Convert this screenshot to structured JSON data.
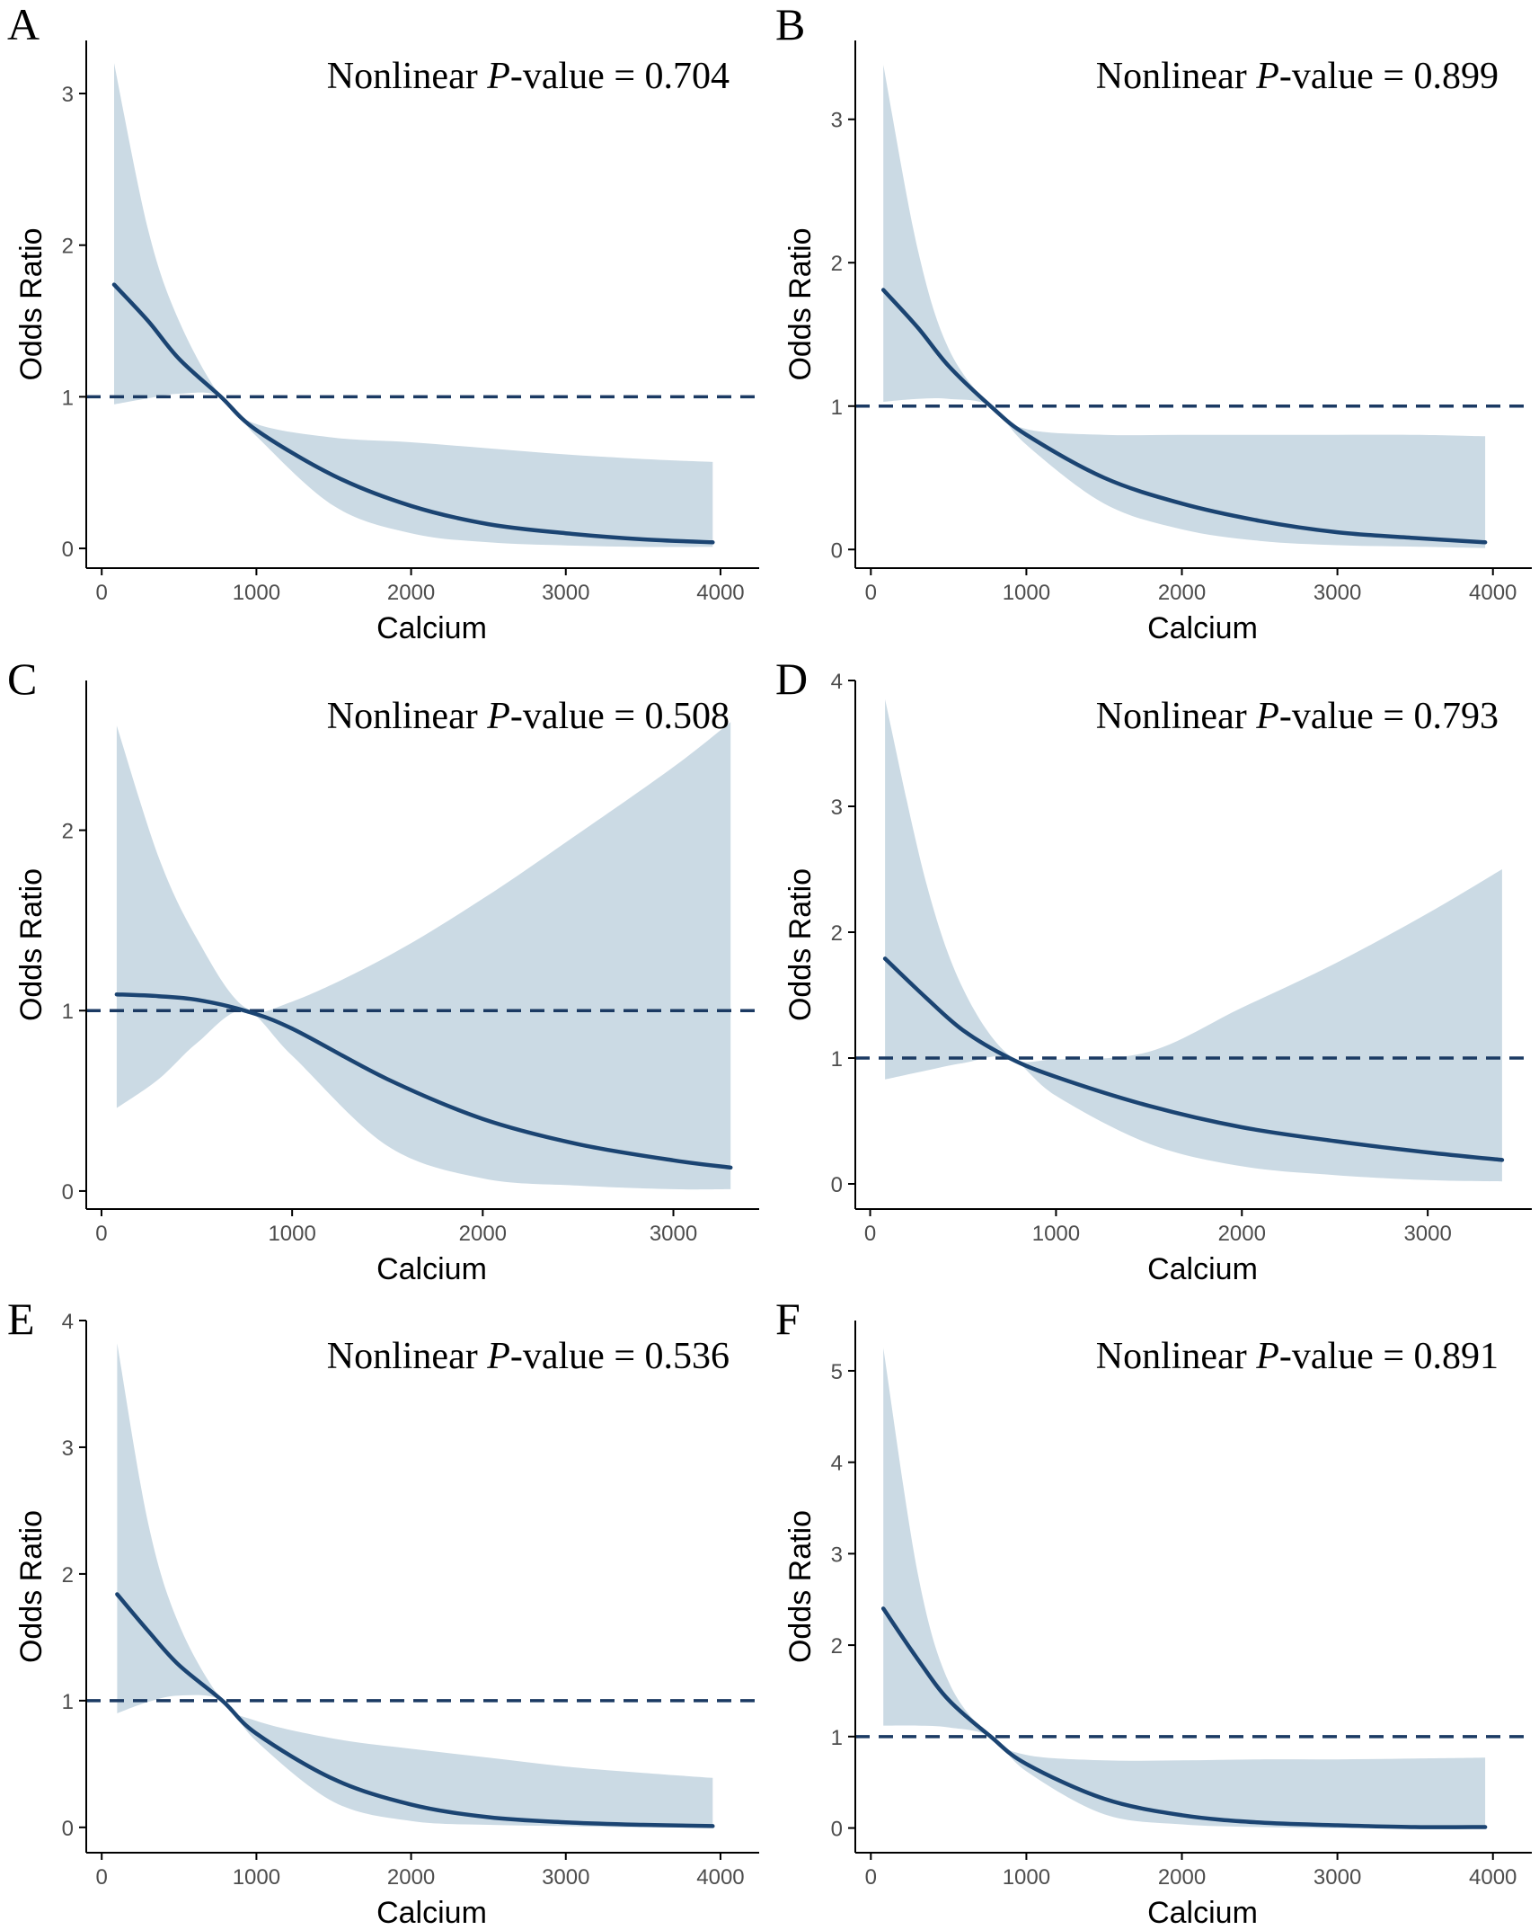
{
  "colors": {
    "line": "#1b4472",
    "band": "#cbdae4",
    "refline": "#1b3a63",
    "axis": "#000000"
  },
  "chart_data": [
    {
      "panel": "A",
      "type": "area",
      "annotation": {
        "prefix": "Nonlinear ",
        "italic": "P",
        "suffix": "-value = 0.704"
      },
      "xlabel": "Calcium",
      "ylabel": "Odds Ratio",
      "xlim": [
        -100,
        4250
      ],
      "ylim": [
        -0.13,
        3.35
      ],
      "xticks": [
        0,
        1000,
        2000,
        3000,
        4000
      ],
      "xtick_labels": [
        "0",
        "1000",
        "2000",
        "3000",
        "4000"
      ],
      "yticks": [
        0,
        1,
        2,
        3
      ],
      "ytick_labels": [
        "0",
        "1",
        "2",
        "3"
      ],
      "reference_line": 1,
      "series": [
        {
          "name": "Odds Ratio",
          "x": [
            80,
            300,
            500,
            770,
            1000,
            1500,
            2000,
            2500,
            3000,
            3500,
            3950
          ],
          "values": [
            1.74,
            1.5,
            1.25,
            1.0,
            0.78,
            0.48,
            0.28,
            0.16,
            0.1,
            0.06,
            0.04
          ]
        },
        {
          "name": "Upper CI",
          "x": [
            80,
            300,
            500,
            770,
            1000,
            1500,
            2000,
            2500,
            3000,
            3500,
            3950
          ],
          "values": [
            3.2,
            2.1,
            1.5,
            1.0,
            0.82,
            0.73,
            0.7,
            0.66,
            0.62,
            0.59,
            0.57
          ]
        },
        {
          "name": "Lower CI",
          "x": [
            80,
            300,
            500,
            770,
            1000,
            1500,
            2000,
            2500,
            3000,
            3500,
            3950
          ],
          "values": [
            0.95,
            0.99,
            1.02,
            1.0,
            0.74,
            0.28,
            0.1,
            0.04,
            0.02,
            0.01,
            0.01
          ]
        }
      ]
    },
    {
      "panel": "B",
      "type": "area",
      "annotation": {
        "prefix": "Nonlinear ",
        "italic": "P",
        "suffix": "-value = 0.899"
      },
      "xlabel": "Calcium",
      "ylabel": "Odds Ratio",
      "xlim": [
        -100,
        4250
      ],
      "ylim": [
        -0.13,
        3.55
      ],
      "xticks": [
        0,
        1000,
        2000,
        3000,
        4000
      ],
      "xtick_labels": [
        "0",
        "1000",
        "2000",
        "3000",
        "4000"
      ],
      "yticks": [
        0,
        1,
        2,
        3
      ],
      "ytick_labels": [
        "0",
        "1",
        "2",
        "3"
      ],
      "reference_line": 1,
      "series": [
        {
          "name": "Odds Ratio",
          "x": [
            80,
            300,
            500,
            770,
            1000,
            1500,
            2000,
            2500,
            3000,
            3500,
            3950
          ],
          "values": [
            1.81,
            1.55,
            1.28,
            1.0,
            0.8,
            0.5,
            0.32,
            0.2,
            0.12,
            0.08,
            0.05
          ]
        },
        {
          "name": "Upper CI",
          "x": [
            80,
            300,
            500,
            770,
            1000,
            1500,
            2000,
            2500,
            3000,
            3500,
            3950
          ],
          "values": [
            3.38,
            2.1,
            1.4,
            1.0,
            0.84,
            0.8,
            0.8,
            0.8,
            0.8,
            0.8,
            0.79
          ]
        },
        {
          "name": "Lower CI",
          "x": [
            80,
            300,
            500,
            770,
            1000,
            1500,
            2000,
            2500,
            3000,
            3500,
            3950
          ],
          "values": [
            1.03,
            1.05,
            1.05,
            1.0,
            0.73,
            0.32,
            0.14,
            0.06,
            0.03,
            0.02,
            0.01
          ]
        }
      ]
    },
    {
      "panel": "C",
      "type": "area",
      "annotation": {
        "prefix": "Nonlinear ",
        "italic": "P",
        "suffix": "-value = 0.508"
      },
      "xlabel": "Calcium",
      "ylabel": "Odds Ratio",
      "xlim": [
        -80,
        3450
      ],
      "ylim": [
        -0.1,
        2.83
      ],
      "xticks": [
        0,
        1000,
        2000,
        3000
      ],
      "xtick_labels": [
        "0",
        "1000",
        "2000",
        "3000"
      ],
      "yticks": [
        0,
        1,
        2
      ],
      "ytick_labels": [
        "0",
        "1",
        "2"
      ],
      "reference_line": 1,
      "series": [
        {
          "name": "Odds Ratio",
          "x": [
            80,
            300,
            500,
            750,
            1000,
            1500,
            2000,
            2500,
            3000,
            3300
          ],
          "values": [
            1.09,
            1.08,
            1.06,
            1.0,
            0.9,
            0.62,
            0.4,
            0.26,
            0.17,
            0.13
          ]
        },
        {
          "name": "Upper CI",
          "x": [
            80,
            300,
            500,
            750,
            1000,
            1500,
            2000,
            2500,
            3000,
            3300
          ],
          "values": [
            2.58,
            1.85,
            1.4,
            1.02,
            1.05,
            1.3,
            1.62,
            1.98,
            2.35,
            2.6
          ]
        },
        {
          "name": "Lower CI",
          "x": [
            80,
            300,
            500,
            750,
            1000,
            1500,
            2000,
            2500,
            3000,
            3300
          ],
          "values": [
            0.46,
            0.62,
            0.82,
            1.0,
            0.75,
            0.25,
            0.07,
            0.03,
            0.01,
            0.01
          ]
        }
      ]
    },
    {
      "panel": "D",
      "type": "area",
      "annotation": {
        "prefix": "Nonlinear ",
        "italic": "P",
        "suffix": "-value = 0.793"
      },
      "xlabel": "Calcium",
      "ylabel": "Odds Ratio",
      "xlim": [
        -80,
        3560
      ],
      "ylim": [
        -0.2,
        4.0
      ],
      "xticks": [
        0,
        1000,
        2000,
        3000
      ],
      "xtick_labels": [
        "0",
        "1000",
        "2000",
        "3000"
      ],
      "yticks": [
        0,
        1,
        2,
        3,
        4
      ],
      "ytick_labels": [
        "0",
        "1",
        "2",
        "3",
        "4"
      ],
      "reference_line": 1,
      "series": [
        {
          "name": "Odds Ratio",
          "x": [
            80,
            300,
            500,
            750,
            1000,
            1500,
            2000,
            2500,
            3000,
            3400
          ],
          "values": [
            1.79,
            1.48,
            1.22,
            1.0,
            0.85,
            0.62,
            0.45,
            0.34,
            0.25,
            0.19
          ]
        },
        {
          "name": "Upper CI",
          "x": [
            80,
            300,
            500,
            750,
            1000,
            1500,
            2000,
            2500,
            3000,
            3400
          ],
          "values": [
            3.85,
            2.4,
            1.55,
            1.02,
            0.99,
            1.05,
            1.4,
            1.75,
            2.15,
            2.5
          ]
        },
        {
          "name": "Lower CI",
          "x": [
            80,
            300,
            500,
            750,
            1000,
            1500,
            2000,
            2500,
            3000,
            3400
          ],
          "values": [
            0.83,
            0.9,
            0.96,
            1.0,
            0.7,
            0.32,
            0.14,
            0.07,
            0.03,
            0.02
          ]
        }
      ]
    },
    {
      "panel": "E",
      "type": "area",
      "annotation": {
        "prefix": "Nonlinear ",
        "italic": "P",
        "suffix": "-value = 0.536"
      },
      "xlabel": "Calcium",
      "ylabel": "Odds Ratio",
      "xlim": [
        -100,
        4250
      ],
      "ylim": [
        -0.2,
        4.0
      ],
      "xticks": [
        0,
        1000,
        2000,
        3000,
        4000
      ],
      "xtick_labels": [
        "0",
        "1000",
        "2000",
        "3000",
        "4000"
      ],
      "yticks": [
        0,
        1,
        2,
        3,
        4
      ],
      "ytick_labels": [
        "0",
        "1",
        "2",
        "3",
        "4"
      ],
      "reference_line": 1,
      "series": [
        {
          "name": "Odds Ratio",
          "x": [
            100,
            300,
            500,
            780,
            1000,
            1500,
            2000,
            2500,
            3000,
            3500,
            3950
          ],
          "values": [
            1.84,
            1.55,
            1.28,
            1.0,
            0.74,
            0.38,
            0.18,
            0.08,
            0.04,
            0.02,
            0.01
          ]
        },
        {
          "name": "Upper CI",
          "x": [
            100,
            300,
            500,
            780,
            1000,
            1500,
            2000,
            2500,
            3000,
            3500,
            3950
          ],
          "values": [
            3.82,
            2.4,
            1.6,
            1.0,
            0.84,
            0.7,
            0.62,
            0.55,
            0.48,
            0.43,
            0.39
          ]
        },
        {
          "name": "Lower CI",
          "x": [
            100,
            300,
            500,
            780,
            1000,
            1500,
            2000,
            2500,
            3000,
            3500,
            3950
          ],
          "values": [
            0.9,
            0.99,
            1.04,
            1.0,
            0.68,
            0.2,
            0.05,
            0.02,
            0.01,
            0.0,
            0.0
          ]
        }
      ]
    },
    {
      "panel": "F",
      "type": "area",
      "annotation": {
        "prefix": "Nonlinear ",
        "italic": "P",
        "suffix": "-value = 0.891"
      },
      "xlabel": "Calcium",
      "ylabel": "Odds Ratio",
      "xlim": [
        -100,
        4250
      ],
      "ylim": [
        -0.27,
        5.55
      ],
      "xticks": [
        0,
        1000,
        2000,
        3000,
        4000
      ],
      "xtick_labels": [
        "0",
        "1000",
        "2000",
        "3000",
        "4000"
      ],
      "yticks": [
        0,
        1,
        2,
        3,
        4,
        5
      ],
      "ytick_labels": [
        "0",
        "1",
        "2",
        "3",
        "4",
        "5"
      ],
      "reference_line": 1,
      "series": [
        {
          "name": "Odds Ratio",
          "x": [
            80,
            300,
            500,
            770,
            1000,
            1500,
            2000,
            2500,
            3000,
            3500,
            3950
          ],
          "values": [
            2.4,
            1.85,
            1.4,
            1.0,
            0.7,
            0.32,
            0.14,
            0.06,
            0.03,
            0.01,
            0.01
          ]
        },
        {
          "name": "Upper CI",
          "x": [
            80,
            300,
            500,
            770,
            1000,
            1500,
            2000,
            2500,
            3000,
            3500,
            3950
          ],
          "values": [
            5.25,
            2.8,
            1.6,
            1.0,
            0.8,
            0.74,
            0.74,
            0.75,
            0.75,
            0.76,
            0.77
          ]
        },
        {
          "name": "Lower CI",
          "x": [
            80,
            300,
            500,
            770,
            1000,
            1500,
            2000,
            2500,
            3000,
            3500,
            3950
          ],
          "values": [
            1.12,
            1.12,
            1.1,
            1.0,
            0.62,
            0.15,
            0.04,
            0.01,
            0.0,
            0.0,
            0.0
          ]
        }
      ]
    }
  ]
}
